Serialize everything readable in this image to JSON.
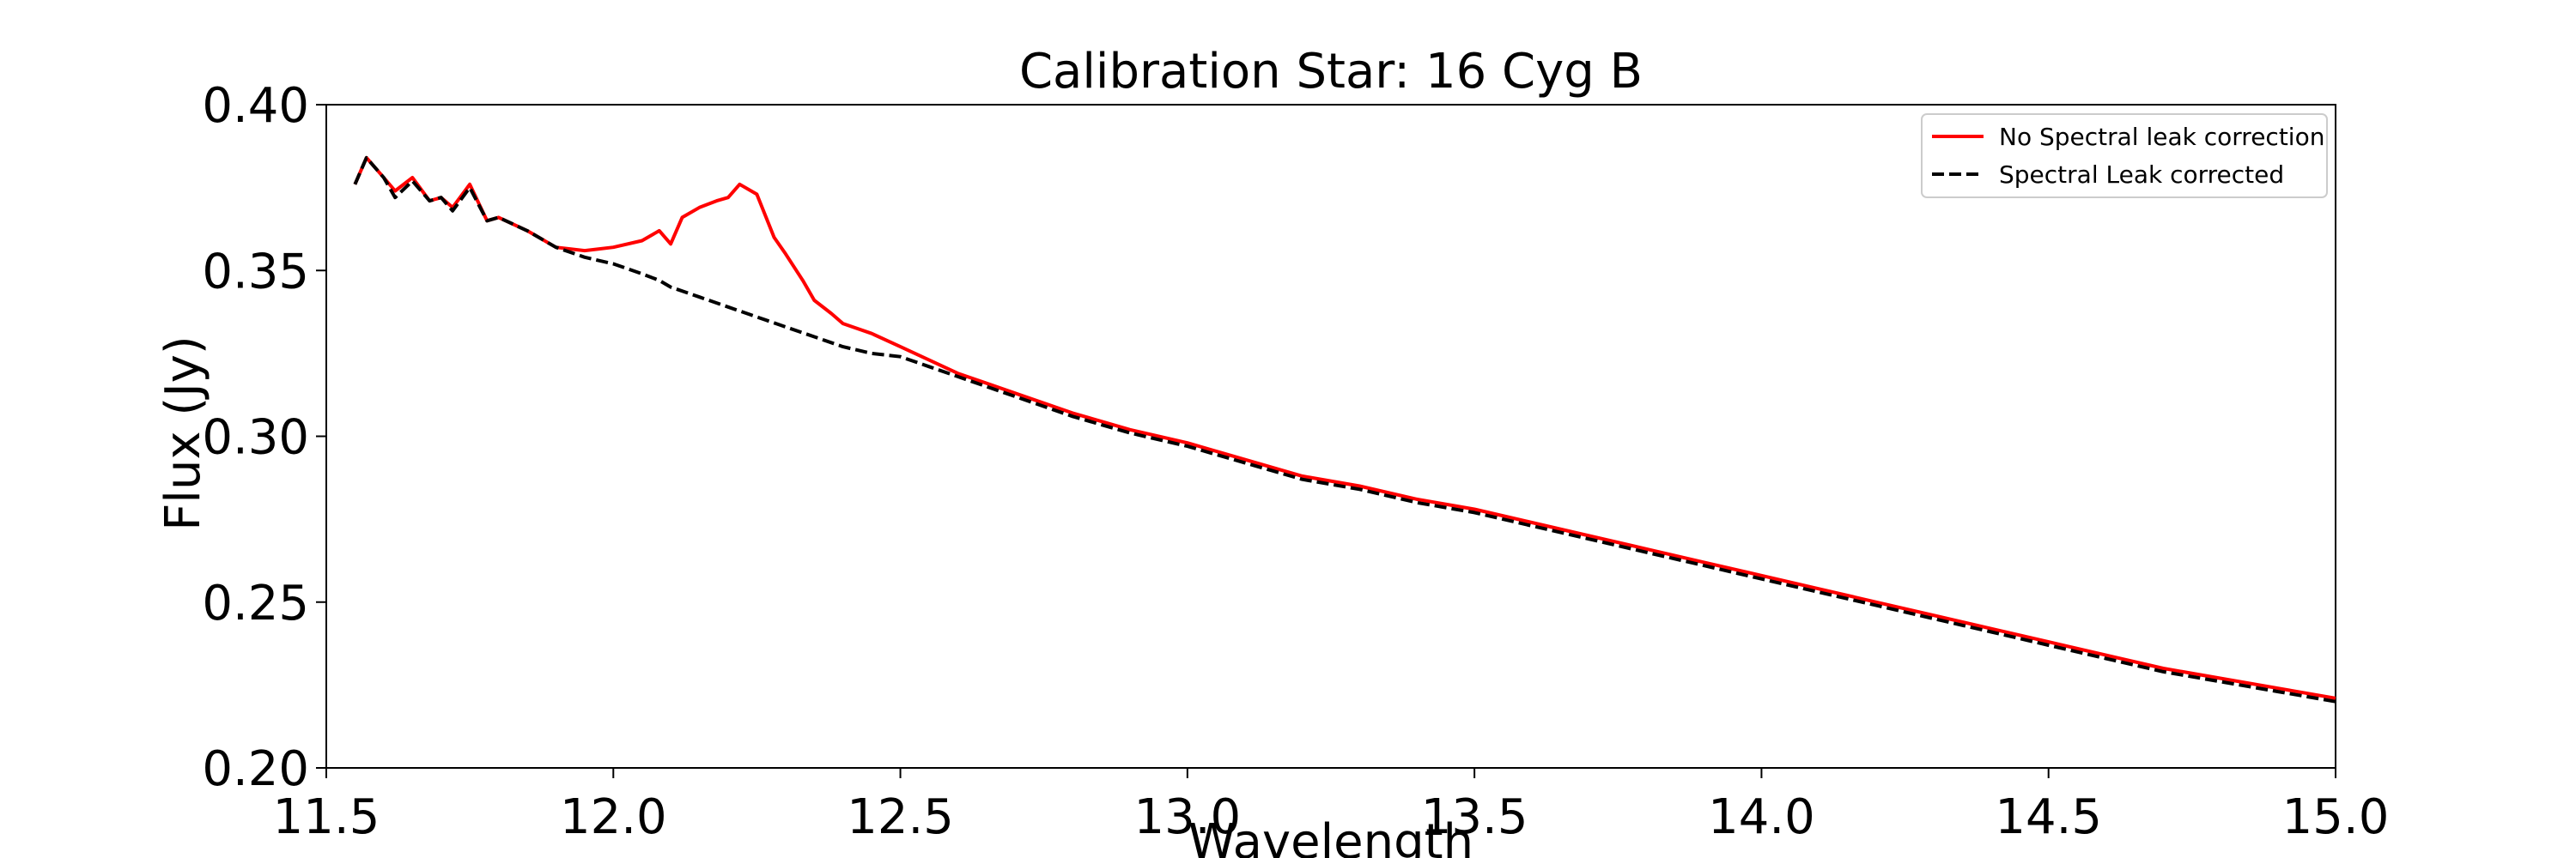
{
  "chart_data": {
    "type": "line",
    "title": "Calibration Star: 16 Cyg B",
    "xlabel": "Wavelength",
    "ylabel": "Flux (Jy)",
    "xlim": [
      11.5,
      15.0
    ],
    "ylim": [
      0.2,
      0.4
    ],
    "xticks": [
      11.5,
      12.0,
      12.5,
      13.0,
      13.5,
      14.0,
      14.5,
      15.0
    ],
    "xtick_labels": [
      "11.5",
      "12.0",
      "12.5",
      "13.0",
      "13.5",
      "14.0",
      "14.5",
      "15.0"
    ],
    "yticks": [
      0.2,
      0.25,
      0.3,
      0.35,
      0.4
    ],
    "ytick_labels": [
      "0.20",
      "0.25",
      "0.30",
      "0.35",
      "0.40"
    ],
    "grid": false,
    "legend_position": "top-right",
    "series": [
      {
        "name": "No Spectral leak correction",
        "color": "#ff0000",
        "linestyle": "solid",
        "x": [
          11.55,
          11.57,
          11.6,
          11.62,
          11.65,
          11.68,
          11.7,
          11.72,
          11.75,
          11.78,
          11.8,
          11.85,
          11.9,
          11.95,
          12.0,
          12.05,
          12.08,
          12.1,
          12.12,
          12.15,
          12.18,
          12.2,
          12.22,
          12.25,
          12.28,
          12.3,
          12.33,
          12.35,
          12.38,
          12.4,
          12.45,
          12.5,
          12.55,
          12.6,
          12.7,
          12.8,
          12.9,
          13.0,
          13.1,
          13.2,
          13.3,
          13.4,
          13.5,
          13.6,
          13.7,
          13.8,
          13.9,
          14.0,
          14.1,
          14.2,
          14.3,
          14.4,
          14.5,
          14.6,
          14.7,
          14.8,
          14.9,
          15.0
        ],
        "y": [
          0.376,
          0.384,
          0.378,
          0.374,
          0.378,
          0.371,
          0.372,
          0.369,
          0.376,
          0.365,
          0.366,
          0.362,
          0.357,
          0.356,
          0.357,
          0.359,
          0.362,
          0.358,
          0.366,
          0.369,
          0.371,
          0.372,
          0.376,
          0.373,
          0.36,
          0.355,
          0.347,
          0.341,
          0.337,
          0.334,
          0.331,
          0.327,
          0.323,
          0.319,
          0.313,
          0.307,
          0.302,
          0.298,
          0.293,
          0.288,
          0.285,
          0.281,
          0.278,
          0.274,
          0.27,
          0.266,
          0.262,
          0.258,
          0.254,
          0.25,
          0.246,
          0.242,
          0.238,
          0.234,
          0.23,
          0.227,
          0.224,
          0.221
        ]
      },
      {
        "name": "Spectral Leak corrected",
        "color": "#000000",
        "linestyle": "dashed",
        "x": [
          11.55,
          11.57,
          11.6,
          11.62,
          11.65,
          11.68,
          11.7,
          11.72,
          11.75,
          11.78,
          11.8,
          11.85,
          11.9,
          11.95,
          12.0,
          12.05,
          12.08,
          12.1,
          12.15,
          12.2,
          12.25,
          12.3,
          12.35,
          12.4,
          12.45,
          12.5,
          12.55,
          12.6,
          12.7,
          12.8,
          12.9,
          13.0,
          13.1,
          13.2,
          13.3,
          13.4,
          13.5,
          13.6,
          13.7,
          13.8,
          13.9,
          14.0,
          14.1,
          14.2,
          14.3,
          14.4,
          14.5,
          14.6,
          14.7,
          14.8,
          14.9,
          15.0
        ],
        "y": [
          0.376,
          0.384,
          0.378,
          0.372,
          0.377,
          0.371,
          0.372,
          0.368,
          0.375,
          0.365,
          0.366,
          0.362,
          0.357,
          0.354,
          0.352,
          0.349,
          0.347,
          0.345,
          0.342,
          0.339,
          0.336,
          0.333,
          0.33,
          0.327,
          0.325,
          0.324,
          0.321,
          0.318,
          0.312,
          0.306,
          0.301,
          0.297,
          0.292,
          0.287,
          0.284,
          0.28,
          0.277,
          0.273,
          0.269,
          0.265,
          0.261,
          0.257,
          0.253,
          0.249,
          0.245,
          0.241,
          0.237,
          0.233,
          0.229,
          0.226,
          0.223,
          0.22
        ]
      }
    ]
  }
}
